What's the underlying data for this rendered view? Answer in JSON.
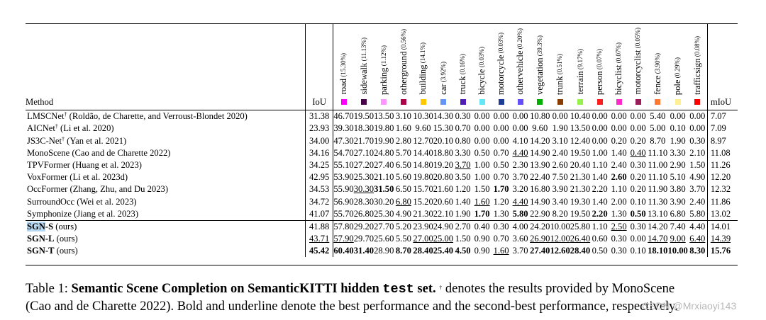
{
  "table": {
    "method_header": "Method",
    "iou_header": "IoU",
    "miou_header": "mIoU",
    "categories": [
      {
        "name": "road",
        "pct": "(15.30%)",
        "color": "#ff00ff"
      },
      {
        "name": "sidewalk",
        "pct": "(11.13%)",
        "color": "#4b004b"
      },
      {
        "name": "parking",
        "pct": "(1.12%)",
        "color": "#ff96ff"
      },
      {
        "name": "otherground",
        "pct": "(0.56%)",
        "color": "#af004b"
      },
      {
        "name": "building",
        "pct": "(14.1%)",
        "color": "#ffc800"
      },
      {
        "name": "car",
        "pct": "(3.92%)",
        "color": "#6496f5"
      },
      {
        "name": "truck",
        "pct": "(0.16%)",
        "color": "#501eb4"
      },
      {
        "name": "bicycle",
        "pct": "(0.03%)",
        "color": "#64e6f5"
      },
      {
        "name": "motorcycle",
        "pct": "(0.03%)",
        "color": "#1e3c96"
      },
      {
        "name": "othervehicle",
        "pct": "(0.20%)",
        "color": "#6450fa"
      },
      {
        "name": "vegetation",
        "pct": "(39.3%)",
        "color": "#00af00"
      },
      {
        "name": "trunk",
        "pct": "(0.51%)",
        "color": "#873c00"
      },
      {
        "name": "terrain",
        "pct": "(9.17%)",
        "color": "#96f050"
      },
      {
        "name": "person",
        "pct": "(0.07%)",
        "color": "#ff1e1e"
      },
      {
        "name": "bicyclist",
        "pct": "(0.07%)",
        "color": "#ff28c8"
      },
      {
        "name": "motorcyclist",
        "pct": "(0.05%)",
        "color": "#961e5a"
      },
      {
        "name": "fence",
        "pct": "(3.90%)",
        "color": "#ff7832"
      },
      {
        "name": "pole",
        "pct": "(0.29%)",
        "color": "#fff096"
      },
      {
        "name": "trafficsign",
        "pct": "(0.08%)",
        "color": "#ff0000"
      }
    ],
    "groups": [
      [
        {
          "method": "LMSCNet",
          "sup": "†",
          "cite": " (Roldão, de Charette, and Verroust-Blondet 2020)",
          "iou": "31.38",
          "vals": [
            "46.70",
            "19.50",
            "13.50",
            "3.10",
            "10.30",
            "14.30",
            "0.30",
            "0.00",
            "0.00",
            "0.00",
            "10.80",
            "0.00",
            "10.40",
            "0.00",
            "0.00",
            "0.00",
            "5.40",
            "0.00",
            "0.00"
          ],
          "miou": "7.07"
        },
        {
          "method": "AICNet",
          "sup": "†",
          "cite": " (Li et al. 2020)",
          "iou": "23.93",
          "vals": [
            "39.30",
            "18.30",
            "19.80",
            "1.60",
            "9.60",
            "15.30",
            "0.70",
            "0.00",
            "0.00",
            "0.00",
            "9.60",
            "1.90",
            "13.50",
            "0.00",
            "0.00",
            "0.00",
            "5.00",
            "0.10",
            "0.00"
          ],
          "miou": "7.09"
        },
        {
          "method": "JS3C-Net",
          "sup": "†",
          "cite": " (Yan et al. 2021)",
          "iou": "34.00",
          "vals": [
            "47.30",
            "21.70",
            "19.90",
            "2.80",
            "12.70",
            "20.10",
            "0.80",
            "0.00",
            "0.00",
            "4.10",
            "14.20",
            "3.10",
            "12.40",
            "0.00",
            "0.20",
            "0.20",
            "8.70",
            "1.90",
            "0.30"
          ],
          "miou": "8.97"
        },
        {
          "method": "MonoScene",
          "sup": "",
          "cite": " (Cao and de Charette 2022)",
          "iou": "34.16",
          "vals": [
            "54.70",
            "27.10",
            "24.80",
            "5.70",
            "14.40",
            "18.80",
            "3.30",
            "0.50",
            "0.70",
            "4.40",
            "14.90",
            "2.40",
            "19.50",
            "1.00",
            "1.40",
            "0.40",
            "11.10",
            "3.30",
            "2.10"
          ],
          "miou": "11.08"
        },
        {
          "method": "TPVFormer",
          "sup": "",
          "cite": " (Huang et al. 2023)",
          "iou": "34.25",
          "vals": [
            "55.10",
            "27.20",
            "27.40",
            "6.50",
            "14.80",
            "19.20",
            "3.70",
            "1.00",
            "0.50",
            "2.30",
            "13.90",
            "2.60",
            "20.40",
            "1.10",
            "2.40",
            "0.30",
            "11.00",
            "2.90",
            "1.50"
          ],
          "miou": "11.26"
        },
        {
          "method": "VoxFormer",
          "sup": "",
          "cite": " (Li et al. 2023d)",
          "iou": "42.95",
          "vals": [
            "53.90",
            "25.30",
            "21.10",
            "5.60",
            "19.80",
            "20.80",
            "3.50",
            "1.00",
            "0.70",
            "3.70",
            "22.40",
            "7.50",
            "21.30",
            "1.40",
            "2.60",
            "0.20",
            "11.10",
            "5.10",
            "4.90"
          ],
          "miou": "12.20"
        },
        {
          "method": "OccFormer",
          "sup": "",
          "cite": " (Zhang, Zhu, and Du 2023)",
          "iou": "34.53",
          "vals": [
            "55.90",
            "30.30",
            "31.50",
            "6.50",
            "15.70",
            "21.60",
            "1.20",
            "1.50",
            "1.70",
            "3.20",
            "16.80",
            "3.90",
            "21.30",
            "2.20",
            "1.10",
            "0.20",
            "11.90",
            "3.80",
            "3.70"
          ],
          "miou": "12.32"
        },
        {
          "method": "SurroundOcc",
          "sup": "",
          "cite": " (Wei et al. 2023)",
          "iou": "34.72",
          "vals": [
            "56.90",
            "28.30",
            "30.20",
            "6.80",
            "15.20",
            "20.60",
            "1.40",
            "1.60",
            "1.20",
            "4.40",
            "14.90",
            "3.40",
            "19.30",
            "1.40",
            "2.00",
            "0.10",
            "11.30",
            "3.90",
            "2.40"
          ],
          "miou": "11.86"
        },
        {
          "method": "Symphonize",
          "sup": "",
          "cite": " (Jiang et al. 2023)",
          "iou": "41.07",
          "vals": [
            "55.70",
            "26.80",
            "25.30",
            "4.90",
            "21.30",
            "22.10",
            "1.90",
            "1.70",
            "1.30",
            "5.80",
            "22.90",
            "8.20",
            "19.50",
            "2.20",
            "1.30",
            "0.50",
            "13.10",
            "6.80",
            "5.80"
          ],
          "miou": "13.02"
        }
      ],
      [
        {
          "method": "SGN-S",
          "sup": "",
          "cite": " (ours)",
          "iou": "41.88",
          "bold_method": true,
          "vals": [
            "57.80",
            "29.20",
            "27.70",
            "5.20",
            "23.90",
            "24.90",
            "2.70",
            "0.40",
            "0.30",
            "4.00",
            "24.20",
            "10.00",
            "25.80",
            "1.10",
            "2.50",
            "0.30",
            "14.20",
            "7.40",
            "4.40"
          ],
          "miou": "14.01"
        },
        {
          "method": "SGN-L",
          "sup": "",
          "cite": " (ours)",
          "iou": "43.71",
          "bold_method": true,
          "vals": [
            "57.90",
            "29.70",
            "25.60",
            "5.50",
            "27.00",
            "25.00",
            "1.50",
            "0.90",
            "0.70",
            "3.60",
            "26.90",
            "12.00",
            "26.40",
            "0.60",
            "0.30",
            "0.00",
            "14.70",
            "9.00",
            "6.40"
          ],
          "miou": "14.39"
        },
        {
          "method": "SGN-T",
          "sup": "",
          "cite": " (ours)",
          "iou": "45.42",
          "bold_method": true,
          "vals": [
            "60.40",
            "31.40",
            "28.90",
            "8.70",
            "28.40",
            "25.40",
            "4.50",
            "0.90",
            "1.60",
            "3.70",
            "27.40",
            "12.60",
            "28.40",
            "0.50",
            "0.30",
            "0.10",
            "18.10",
            "10.00",
            "8.30"
          ],
          "miou": "15.76"
        }
      ]
    ],
    "bold_cells": [
      [
        0,
        6,
        "c2"
      ],
      [
        0,
        6,
        "c8"
      ],
      [
        0,
        5,
        "c14"
      ],
      [
        0,
        8,
        "c7"
      ],
      [
        0,
        8,
        "c9"
      ],
      [
        0,
        8,
        "c13"
      ],
      [
        0,
        8,
        "c15"
      ],
      [
        1,
        2,
        "iou"
      ],
      [
        1,
        2,
        "c0"
      ],
      [
        1,
        2,
        "c1"
      ],
      [
        1,
        2,
        "c3"
      ],
      [
        1,
        2,
        "c4"
      ],
      [
        1,
        2,
        "c5"
      ],
      [
        1,
        2,
        "c6"
      ],
      [
        1,
        2,
        "c10"
      ],
      [
        1,
        2,
        "c11"
      ],
      [
        1,
        2,
        "c12"
      ],
      [
        1,
        2,
        "c16"
      ],
      [
        1,
        2,
        "c17"
      ],
      [
        1,
        2,
        "c18"
      ],
      [
        1,
        2,
        "miou"
      ]
    ],
    "underline_cells": [
      [
        0,
        4,
        "c6"
      ],
      [
        0,
        6,
        "c1"
      ],
      [
        0,
        7,
        "c3"
      ],
      [
        0,
        7,
        "c7"
      ],
      [
        0,
        7,
        "c9"
      ],
      [
        0,
        3,
        "c9"
      ],
      [
        0,
        3,
        "c15"
      ],
      [
        1,
        0,
        "c14"
      ],
      [
        1,
        1,
        "iou"
      ],
      [
        1,
        1,
        "c0"
      ],
      [
        1,
        1,
        "c4"
      ],
      [
        1,
        1,
        "c5"
      ],
      [
        1,
        1,
        "c10"
      ],
      [
        1,
        1,
        "c11"
      ],
      [
        1,
        1,
        "c12"
      ],
      [
        1,
        1,
        "c16"
      ],
      [
        1,
        1,
        "c17"
      ],
      [
        1,
        1,
        "c18"
      ],
      [
        1,
        1,
        "miou"
      ],
      [
        1,
        2,
        "c8"
      ]
    ],
    "highlight_cells": [
      [
        1,
        0,
        "sgn"
      ]
    ]
  },
  "caption": {
    "label": "Table 1:",
    "title_pre": "Semantic Scene Completion on SemanticKITTI hidden",
    "title_code": "test",
    "title_post": "set.",
    "dagger": "†",
    "text1": " denotes the results provided by MonoScene",
    "text2": "(Cao and de Charette 2022). Bold and underline denote the best performance and the second-best performance, respectively."
  },
  "watermark": "CSDN @Mrxiaoyi143"
}
